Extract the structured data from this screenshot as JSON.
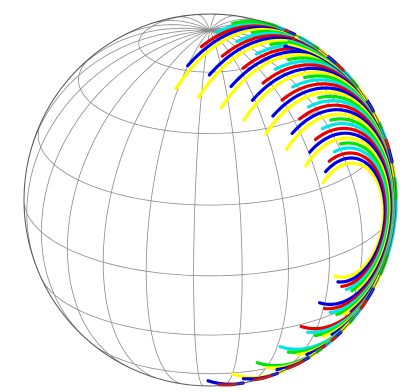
{
  "figure": {
    "type": "sphere-projection",
    "projection": "orthographic",
    "grid": {
      "meridians": 12,
      "parallels": 8,
      "color": "#8c8c8c"
    },
    "background": "#ffffff",
    "palette": {
      "blue": "#0000e6",
      "green": "#00e600",
      "red": "#e60000",
      "yellow": "#ffff00",
      "cyan": "#00e6e6"
    },
    "track_groups": [
      "left-limb",
      "central-meridian",
      "right-nested-arcs",
      "ring-cluster"
    ]
  }
}
